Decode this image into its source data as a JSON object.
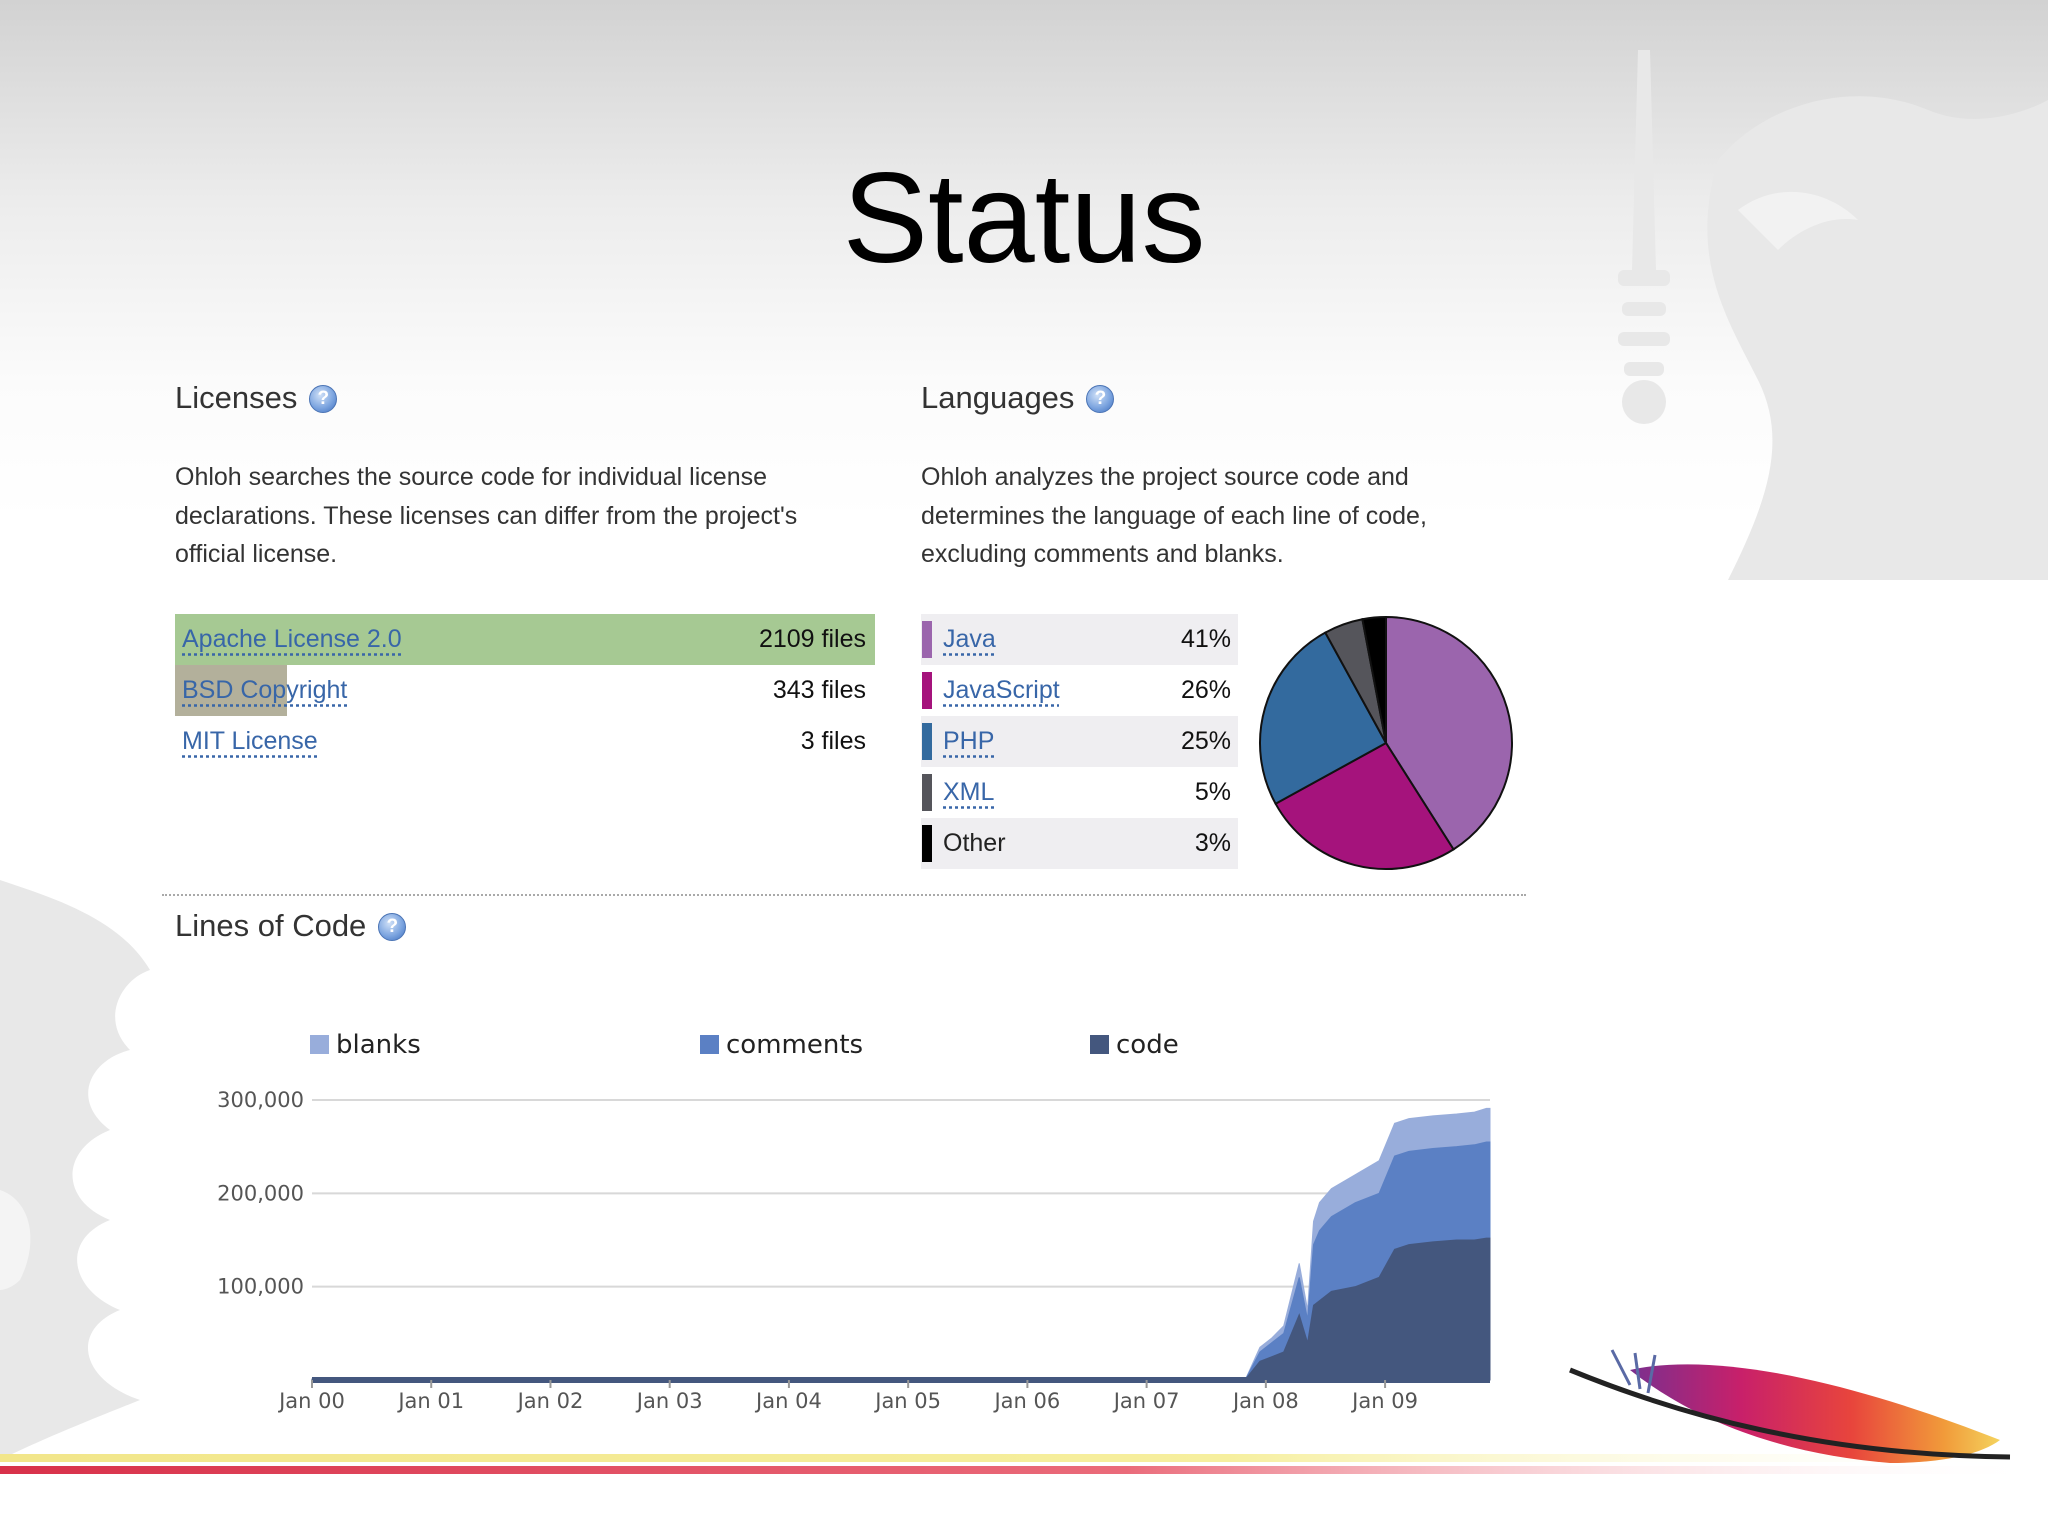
{
  "slide": {
    "title": "Status"
  },
  "licenses": {
    "heading": "Licenses",
    "help_icon": "question-icon",
    "description": "Ohloh searches the source code for individual license declarations. These licenses can differ from the project's official license.",
    "items": [
      {
        "name": "Apache License 2.0",
        "count": "2109 files",
        "share": 1.0,
        "color": "#a6c993"
      },
      {
        "name": "BSD Copyright",
        "count": "343 files",
        "share": 0.16,
        "color": "#b3b09b"
      },
      {
        "name": "MIT License",
        "count": "3 files",
        "share": 0.0,
        "color": "#cfcfcf"
      }
    ]
  },
  "languages": {
    "heading": "Languages",
    "help_icon": "question-icon",
    "description": "Ohloh analyzes the project source code and determines the language of each line of code, excluding comments and blanks.",
    "items": [
      {
        "name": "Java",
        "pct": "41%",
        "value": 41,
        "color": "#9b65ad",
        "link": true
      },
      {
        "name": "JavaScript",
        "pct": "26%",
        "value": 26,
        "color": "#a5137c",
        "link": true
      },
      {
        "name": "PHP",
        "pct": "25%",
        "value": 25,
        "color": "#336a9e",
        "link": true
      },
      {
        "name": "XML",
        "pct": "5%",
        "value": 5,
        "color": "#55555b",
        "link": true
      },
      {
        "name": "Other",
        "pct": "3%",
        "value": 3,
        "color": "#000000",
        "link": false
      }
    ]
  },
  "lines_of_code": {
    "heading": "Lines of Code",
    "help_icon": "question-icon"
  },
  "chart_data": {
    "type": "area",
    "title": "",
    "xlabel": "",
    "ylabel": "",
    "stacked": true,
    "x_ticks": [
      "Jan 00",
      "Jan 01",
      "Jan 02",
      "Jan 03",
      "Jan 04",
      "Jan 05",
      "Jan 06",
      "Jan 07",
      "Jan 08",
      "Jan 09"
    ],
    "y_ticks": [
      "100,000",
      "200,000",
      "300,000"
    ],
    "ylim": [
      0,
      300000
    ],
    "xlim": [
      2000.0,
      2009.88
    ],
    "legend_position": "top",
    "grid": true,
    "x": [
      2000.0,
      2007.0,
      2007.83,
      2007.95,
      2008.05,
      2008.15,
      2008.28,
      2008.35,
      2008.4,
      2008.45,
      2008.55,
      2008.75,
      2008.95,
      2009.08,
      2009.2,
      2009.4,
      2009.6,
      2009.75,
      2009.85,
      2009.88
    ],
    "series": [
      {
        "name": "code",
        "color": "#44577e",
        "values": [
          1000,
          1000,
          1000,
          20000,
          25000,
          30000,
          70000,
          40000,
          80000,
          85000,
          95000,
          100000,
          110000,
          140000,
          145000,
          148000,
          150000,
          150000,
          152000,
          152000
        ]
      },
      {
        "name": "comments",
        "color": "#5b80c4",
        "values": [
          0,
          0,
          0,
          10000,
          15000,
          20000,
          40000,
          25000,
          65000,
          75000,
          80000,
          90000,
          90000,
          100000,
          100000,
          100000,
          100000,
          102000,
          103000,
          103000
        ]
      },
      {
        "name": "blanks",
        "color": "#98addb",
        "values": [
          0,
          0,
          0,
          5000,
          5000,
          8000,
          15000,
          10000,
          25000,
          30000,
          30000,
          30000,
          35000,
          35000,
          35000,
          35000,
          35000,
          35000,
          36000,
          36000
        ]
      }
    ]
  }
}
